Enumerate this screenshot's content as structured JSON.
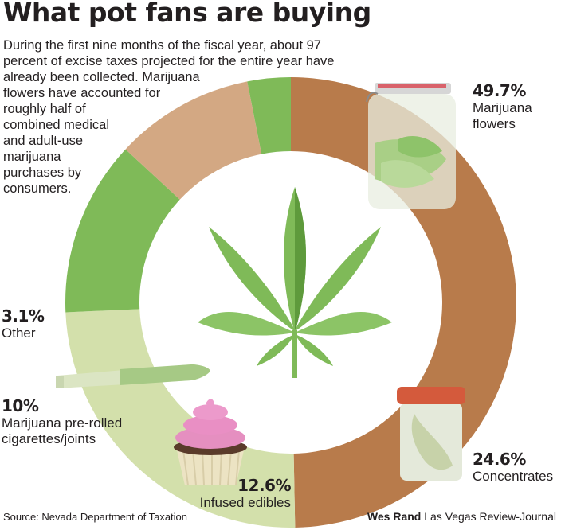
{
  "title": "What pot fans are buying",
  "intro_lines": [
    "During the first nine months of the fiscal year, about 97",
    "percent of excise taxes projected for the entire year have",
    "already been collected. Marijuana",
    "flowers have accounted for",
    "roughly half of",
    "combined medical",
    "and adult-use",
    "marijuana",
    "purchases by",
    "consumers."
  ],
  "chart_data": {
    "type": "pie",
    "variant": "donut",
    "start": "top, clockwise",
    "categories": [
      "Marijuana flowers",
      "Concentrates",
      "Infused edibles",
      "Marijuana pre-rolled cigarettes/joints",
      "Other"
    ],
    "values": [
      49.7,
      24.6,
      12.6,
      10,
      3.1
    ],
    "unit": "%",
    "colors": [
      "#b87b4b",
      "#d3e0ab",
      "#7fba58",
      "#d3a883",
      "#7fba58"
    ],
    "legend": "none (labels placed beside slices)"
  },
  "labels": [
    {
      "pct": "49.7%",
      "name_lines": [
        "Marijuana",
        "flowers"
      ]
    },
    {
      "pct": "24.6%",
      "name_lines": [
        "Concentrates"
      ]
    },
    {
      "pct": "12.6%",
      "name_lines": [
        "Infused edibles"
      ]
    },
    {
      "pct": "10%",
      "name_lines": [
        "Marijuana pre-rolled",
        "cigarettes/joints"
      ]
    },
    {
      "pct": "3.1%",
      "name_lines": [
        "Other"
      ]
    }
  ],
  "illustrations": [
    "jar-icon",
    "cannabis-leaf-icon",
    "joint-icon",
    "cupcake-icon",
    "concentrate-jar-icon"
  ],
  "source": "Source: Nevada Department of Taxation",
  "credit": {
    "author": "Wes Rand",
    "outlet": "Las Vegas Review-Journal"
  }
}
